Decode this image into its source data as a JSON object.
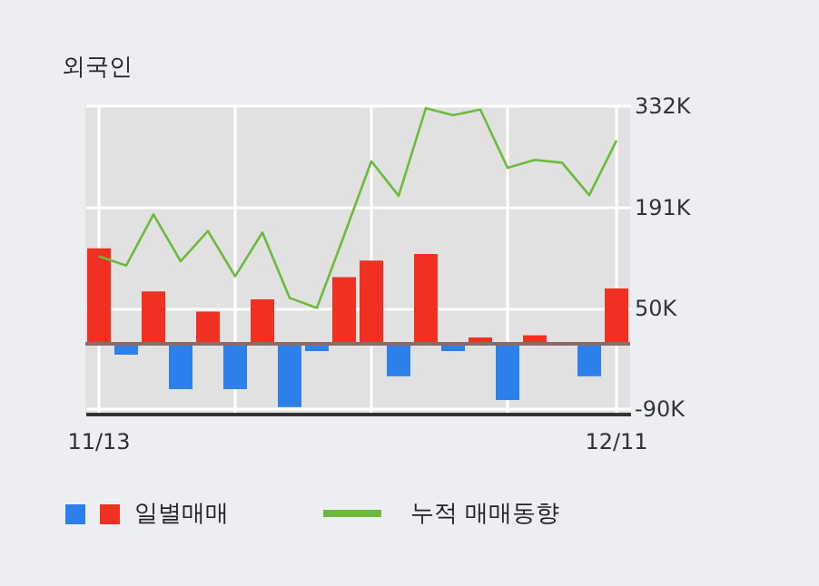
{
  "chart_data": {
    "type": "bar",
    "title": "외국인",
    "categories": [
      "11/13",
      null,
      null,
      null,
      null,
      null,
      null,
      null,
      null,
      null,
      null,
      null,
      null,
      null,
      null,
      null,
      null,
      null,
      null,
      "12/11"
    ],
    "series": [
      {
        "name": "일별매매",
        "colors": [
          "#f03020",
          "#2d80ea",
          "#f03020",
          "#2d80ea",
          "#f03020",
          "#2d80ea",
          "#f03020",
          "#2d80ea",
          "#2d80ea",
          "#f03020",
          "#f03020",
          "#2d80ea",
          "#f03020",
          "#2d80ea",
          "#f03020",
          "#2d80ea",
          "#f03020",
          "#f03020",
          "#2d80ea",
          "#f03020"
        ],
        "values": [
          133,
          -15,
          73,
          -63,
          45,
          -63,
          62,
          -88,
          -10,
          93,
          116,
          -45,
          125,
          -10,
          9,
          -78,
          12,
          0,
          -45,
          77
        ]
      },
      {
        "name": "누적 매매동향",
        "type": "line",
        "color": "#6cbb3c",
        "values": [
          122,
          109,
          180,
          115,
          157,
          94,
          155,
          64,
          50,
          151,
          254,
          206,
          328,
          318,
          326,
          245,
          256,
          252,
          207,
          283
        ]
      }
    ],
    "ylim": [
      -97,
      332
    ],
    "yticks": [
      {
        "value": 332,
        "label": "332K"
      },
      {
        "value": 191,
        "label": "191K"
      },
      {
        "value": 50,
        "label": "50K"
      },
      {
        "value": -90,
        "label": "-90K"
      }
    ],
    "ref_lines": [
      {
        "axis": "y",
        "value": 0,
        "color": "#8a6a6a"
      }
    ],
    "grid": true,
    "legend": "bottom"
  }
}
